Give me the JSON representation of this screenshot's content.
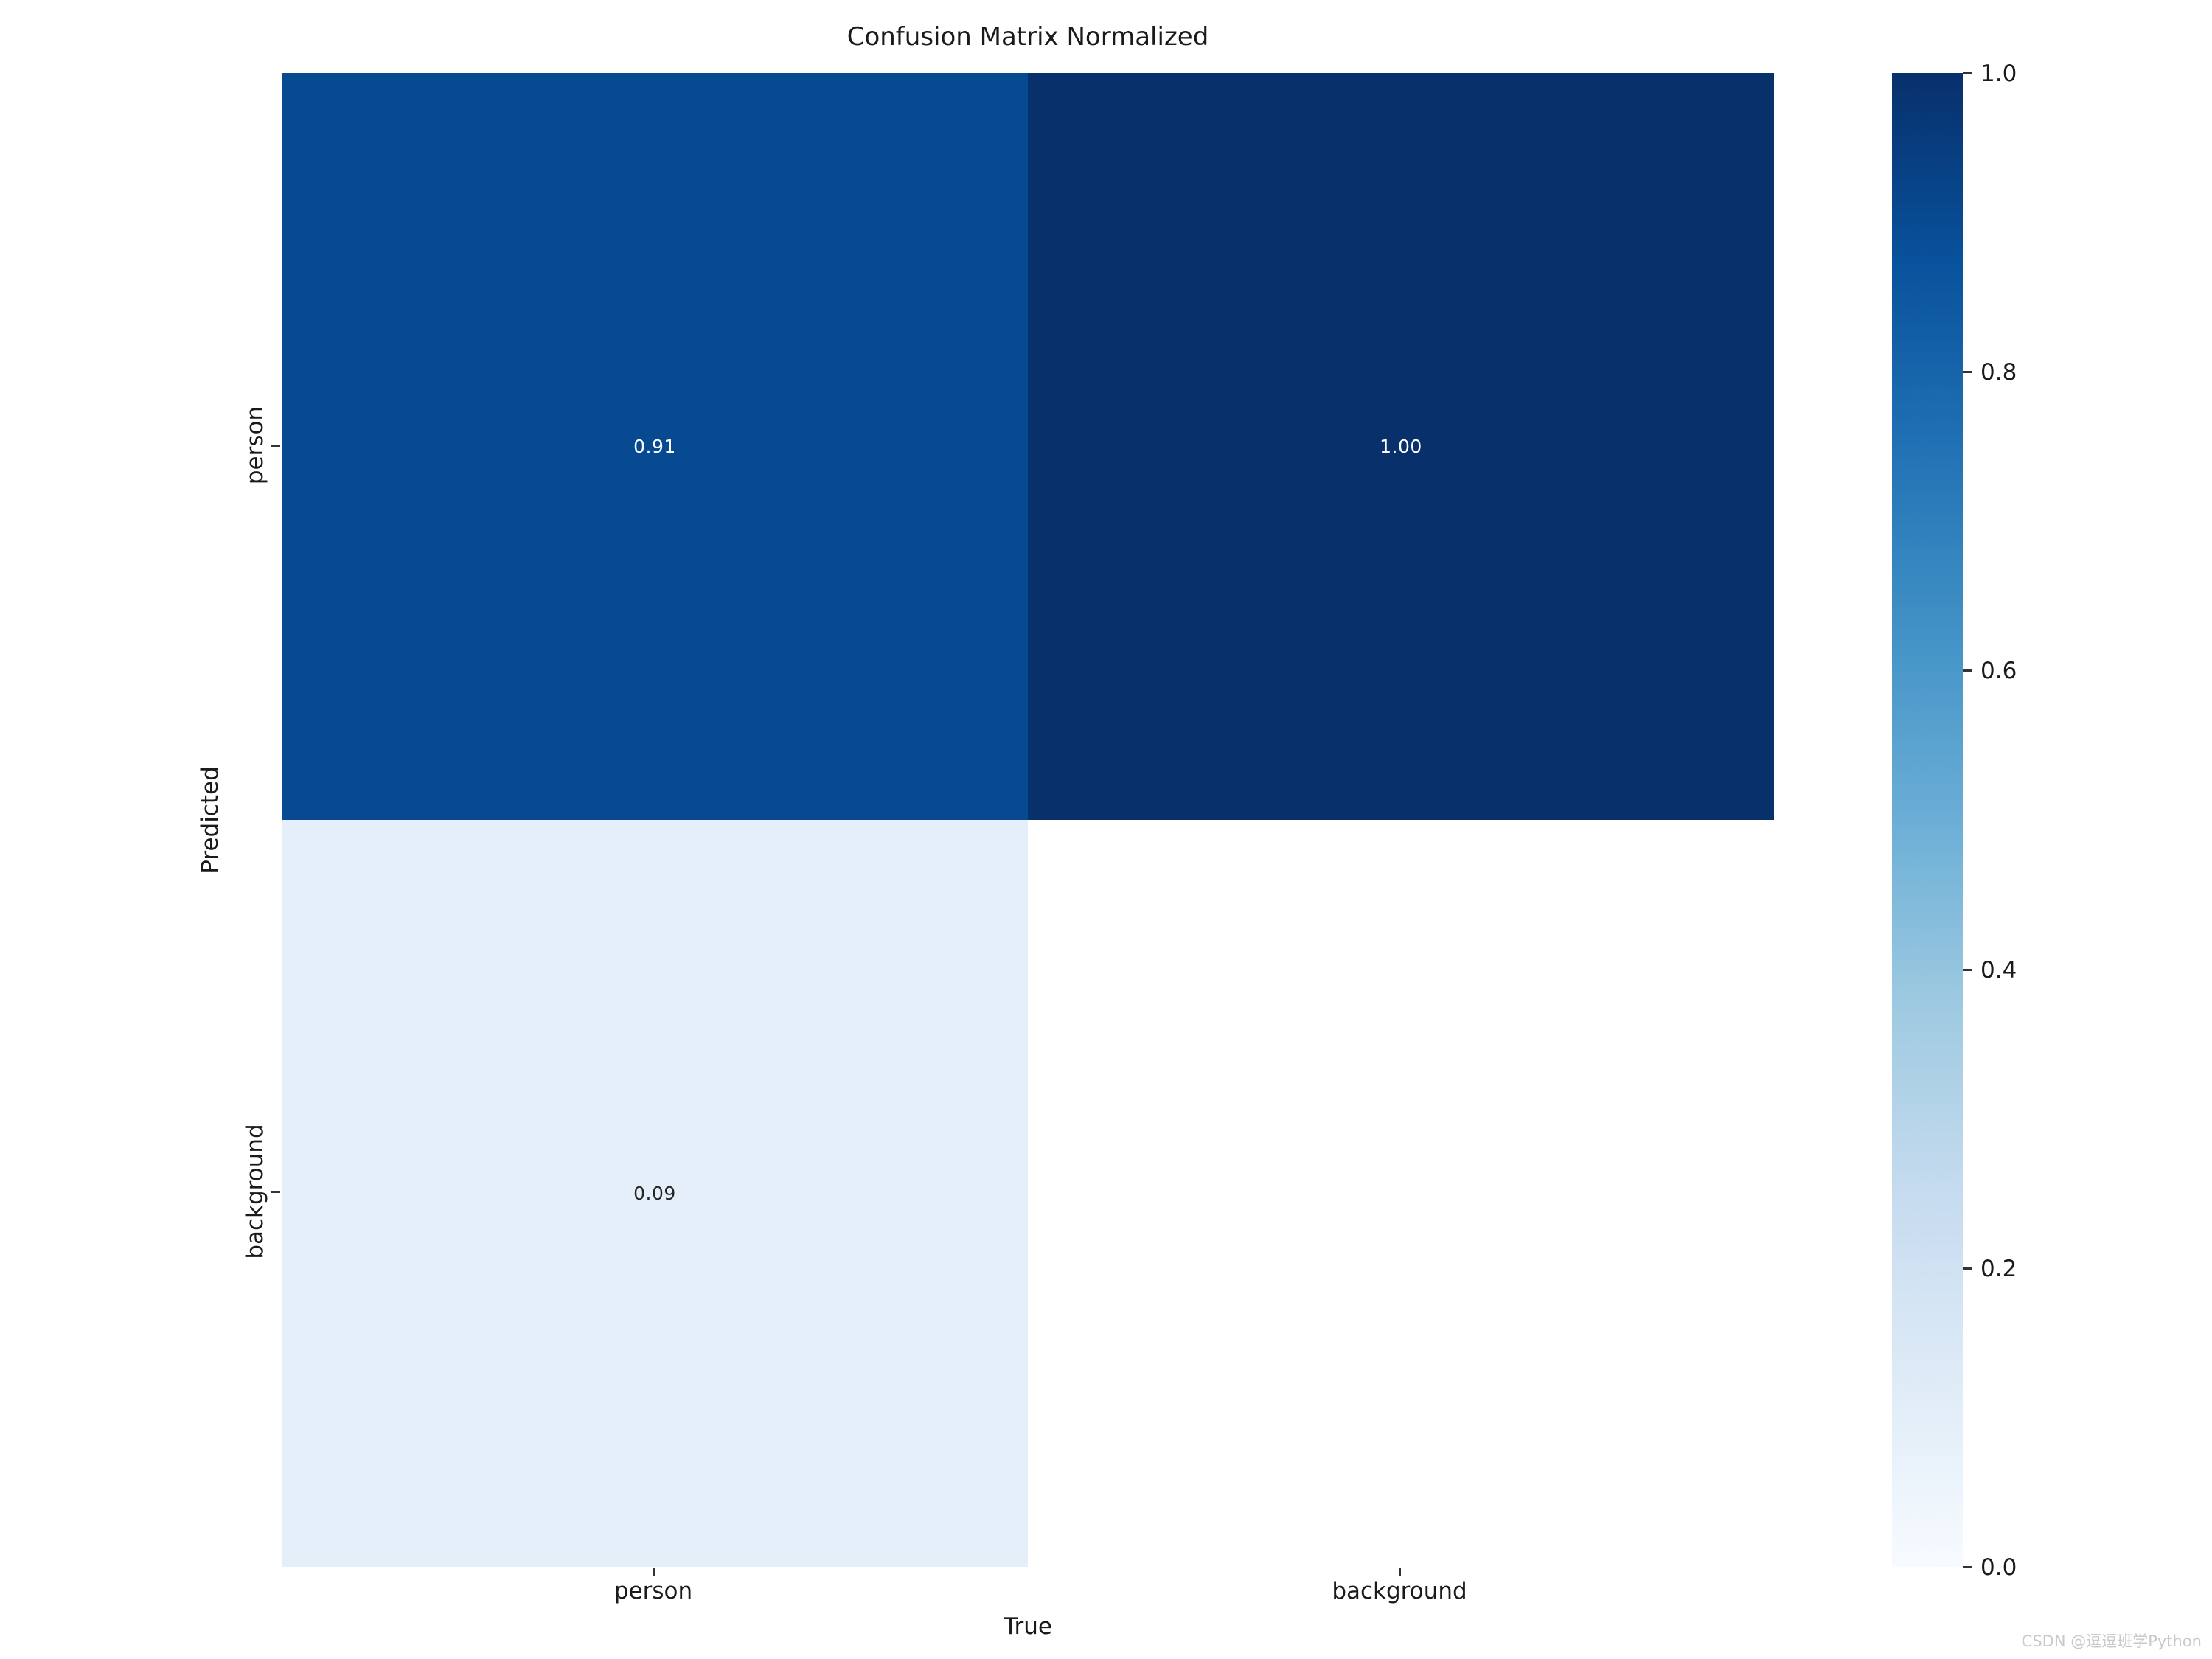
{
  "page": {
    "watermark": "CSDN @逗逗班学Python"
  },
  "chart_data": {
    "type": "heatmap",
    "title": "Confusion Matrix Normalized",
    "xlabel": "True",
    "ylabel": "Predicted",
    "x_ticklabels": [
      "person",
      "background"
    ],
    "y_ticklabels": [
      "person",
      "background"
    ],
    "values": [
      [
        0.91,
        1.0
      ],
      [
        0.09,
        null
      ]
    ],
    "cells": [
      {
        "row": "person",
        "col": "person",
        "value": 0.91,
        "label": "0.91",
        "color": "#084a91",
        "text_color": "#ffffff"
      },
      {
        "row": "person",
        "col": "background",
        "value": 1.0,
        "label": "1.00",
        "color": "#08306b",
        "text_color": "#ffffff"
      },
      {
        "row": "background",
        "col": "person",
        "value": 0.09,
        "label": "0.09",
        "color": "#e4eff9",
        "text_color": "#262626"
      },
      {
        "row": "background",
        "col": "background",
        "value": null,
        "label": "",
        "color": "#ffffff",
        "text_color": "#262626"
      }
    ],
    "colormap": "Blues",
    "colorbar": {
      "position": "right",
      "range": [
        0.0,
        1.0
      ],
      "ticks": [
        1.0,
        0.8,
        0.6,
        0.4,
        0.2,
        0.0
      ],
      "tick_labels": [
        "1.0",
        "0.8",
        "0.6",
        "0.4",
        "0.2",
        "0.0"
      ],
      "gradient_top_to_bottom": [
        "#08306b",
        "#08519c",
        "#2171b5",
        "#4292c6",
        "#6baed6",
        "#9ecae1",
        "#c6dbef",
        "#deebf7",
        "#f7fbff"
      ]
    },
    "grid": false,
    "legend": false
  }
}
